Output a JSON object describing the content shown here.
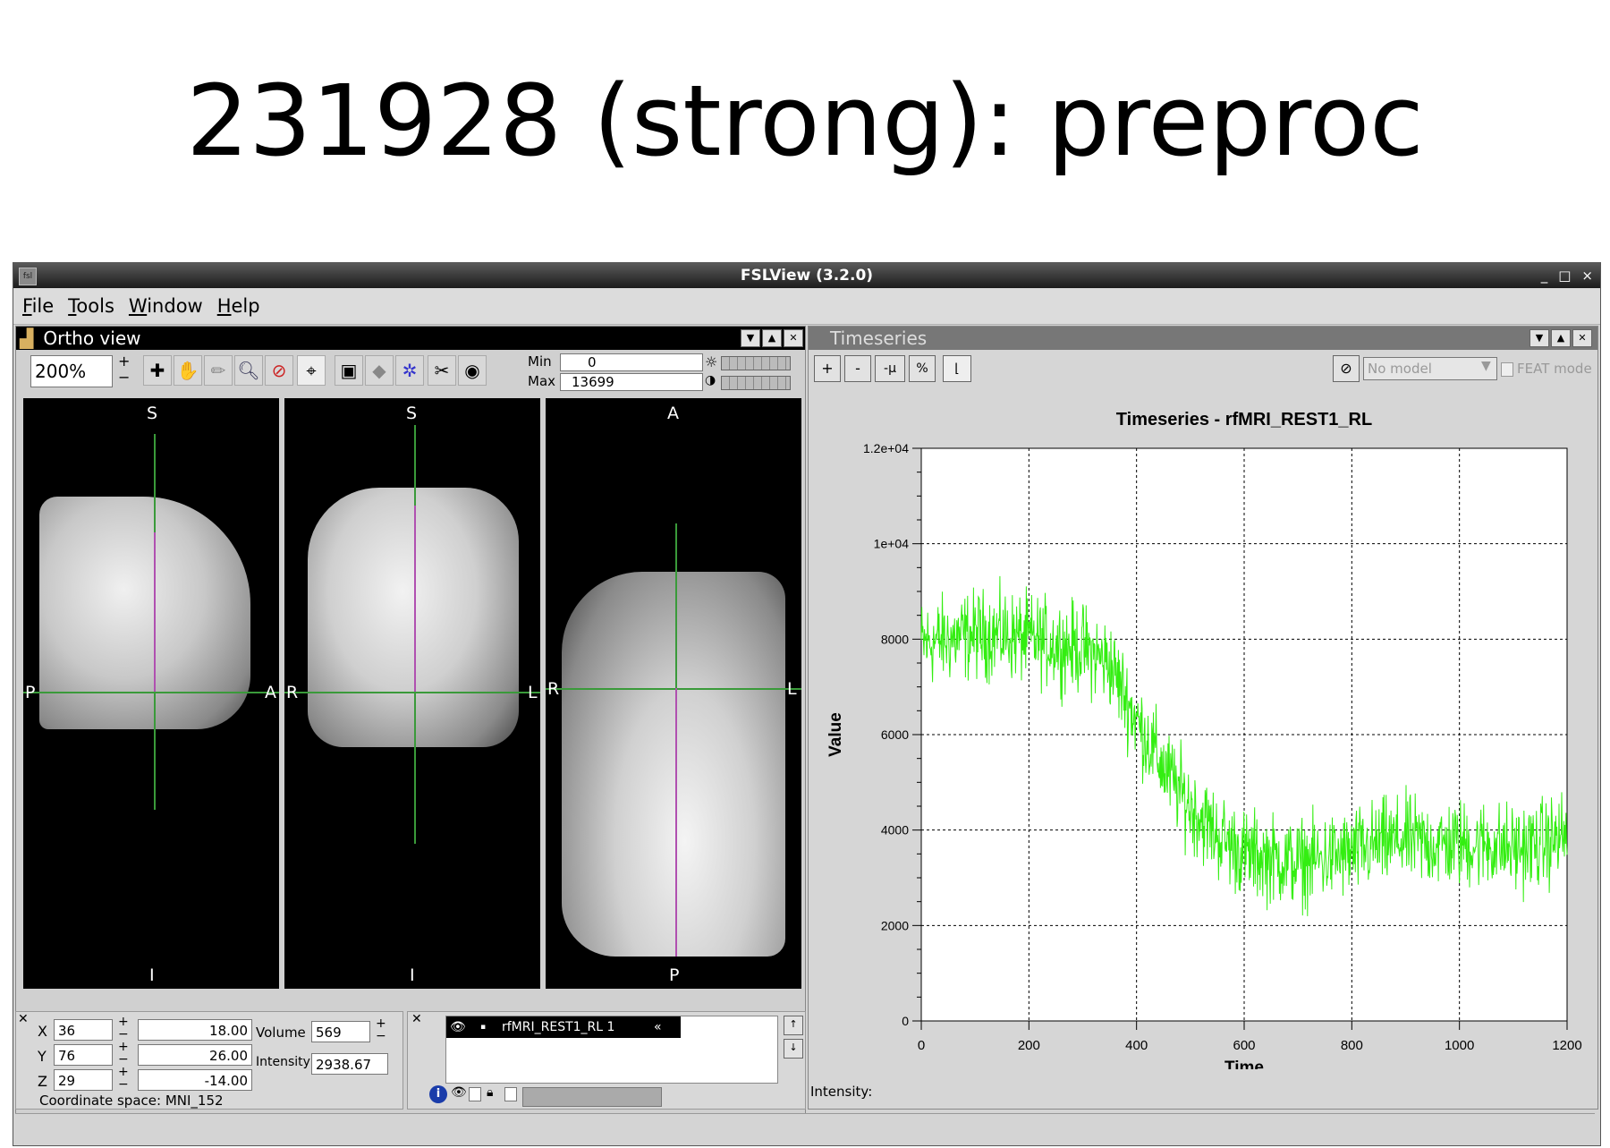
{
  "slide": {
    "title": "231928 (strong): preproc"
  },
  "window": {
    "title": "FSLView (3.2.0)",
    "controls": [
      "_",
      "□",
      "×"
    ]
  },
  "menu": [
    {
      "label": "File",
      "key": "F",
      "rest": "ile"
    },
    {
      "label": "Tools",
      "key": "T",
      "rest": "ools"
    },
    {
      "label": "Window",
      "key": "W",
      "rest": "indow"
    },
    {
      "label": "Help",
      "key": "H",
      "rest": "elp"
    }
  ],
  "ortho": {
    "title": "Ortho view",
    "zoom": "200%",
    "min_label": "Min",
    "min_value": "0",
    "max_label": "Max",
    "max_value": "13699",
    "sagittal": {
      "top": "S",
      "bottom": "I",
      "left": "P",
      "right": "A"
    },
    "coronal": {
      "top": "S",
      "bottom": "I",
      "left": "R",
      "right": "L"
    },
    "axial": {
      "top": "A",
      "bottom": "P",
      "left": "R",
      "right": "L"
    }
  },
  "coords": {
    "x_label": "X",
    "x_vox": "36",
    "x_mm": "18.00",
    "y_label": "Y",
    "y_vox": "76",
    "y_mm": "26.00",
    "z_label": "Z",
    "z_vox": "29",
    "z_mm": "-14.00",
    "volume_label": "Volume",
    "volume_value": "569",
    "intensity_label": "Intensity",
    "intensity_value": "2938.67",
    "space": "Coordinate space: MNI_152"
  },
  "layers": {
    "items": [
      {
        "name": "rfMRI_REST1_RL 1"
      }
    ]
  },
  "timeseries": {
    "title": "Timeseries",
    "buttons": [
      "+",
      "-",
      "-μ",
      "%"
    ],
    "model_placeholder": "No model",
    "feat_label": "FEAT mode",
    "intensity_label": "Intensity:"
  },
  "chart_data": {
    "type": "line",
    "title": "Timeseries - rfMRI_REST1_RL",
    "xlabel": "Time",
    "ylabel": "Value",
    "xlim": [
      0,
      1200
    ],
    "ylim": [
      0,
      12000
    ],
    "xticks": [
      "0",
      "200",
      "400",
      "600",
      "800",
      "1000",
      "1200"
    ],
    "yticks": [
      "0",
      "2000",
      "4000",
      "6000",
      "8000",
      "1e+04",
      "1.2e+04"
    ],
    "grid": true,
    "color": "#33ee11",
    "trend": {
      "x": [
        0,
        50,
        100,
        150,
        200,
        250,
        300,
        350,
        400,
        450,
        500,
        550,
        600,
        650,
        700,
        750,
        800,
        850,
        900,
        950,
        1000,
        1050,
        1100,
        1150,
        1200
      ],
      "y": [
        7900,
        8000,
        8100,
        8100,
        8000,
        7900,
        7800,
        7500,
        6300,
        5300,
        4500,
        3900,
        3500,
        3400,
        3300,
        3400,
        3500,
        3700,
        3800,
        3700,
        3700,
        3700,
        3600,
        3700,
        3900
      ]
    },
    "noise_amplitude": 700,
    "n_points": 1200
  }
}
